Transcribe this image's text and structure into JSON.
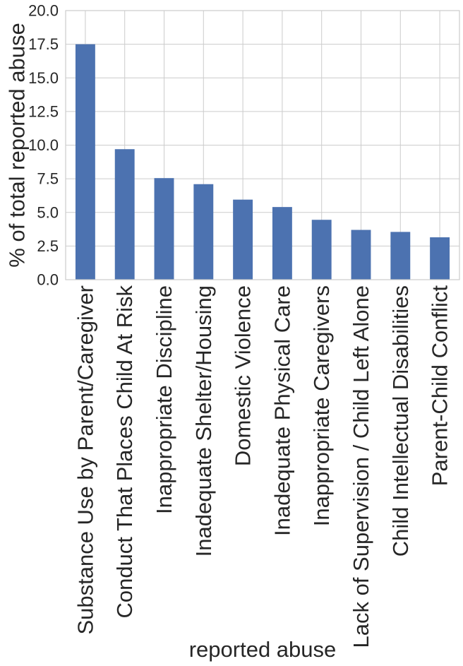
{
  "chart_data": {
    "type": "bar",
    "title": "",
    "xlabel": "reported abuse",
    "ylabel": "% of total reported abuse",
    "ylim": [
      0,
      20
    ],
    "yticks": [
      "0.0",
      "2.5",
      "5.0",
      "7.5",
      "10.0",
      "12.5",
      "15.0",
      "17.5",
      "20.0"
    ],
    "grid": true,
    "categories": [
      "Substance Use by Parent/Caregiver",
      "Conduct That Places Child At Risk",
      "Inappropriate Discipline",
      "Inadequate Shelter/Housing",
      "Domestic Violence",
      "Inadequate Physical Care",
      "Inappropriate Caregivers",
      "Lack of Supervision / Child Left Alone",
      "Child Intellectual Disabilities",
      "Parent-Child Conflict"
    ],
    "values": [
      17.5,
      9.7,
      7.55,
      7.1,
      5.95,
      5.4,
      4.45,
      3.7,
      3.55,
      3.15
    ],
    "colors": {
      "bar": "#4c72b0",
      "grid": "#cccccc",
      "frame": "#cccccc",
      "text": "#262626"
    }
  }
}
